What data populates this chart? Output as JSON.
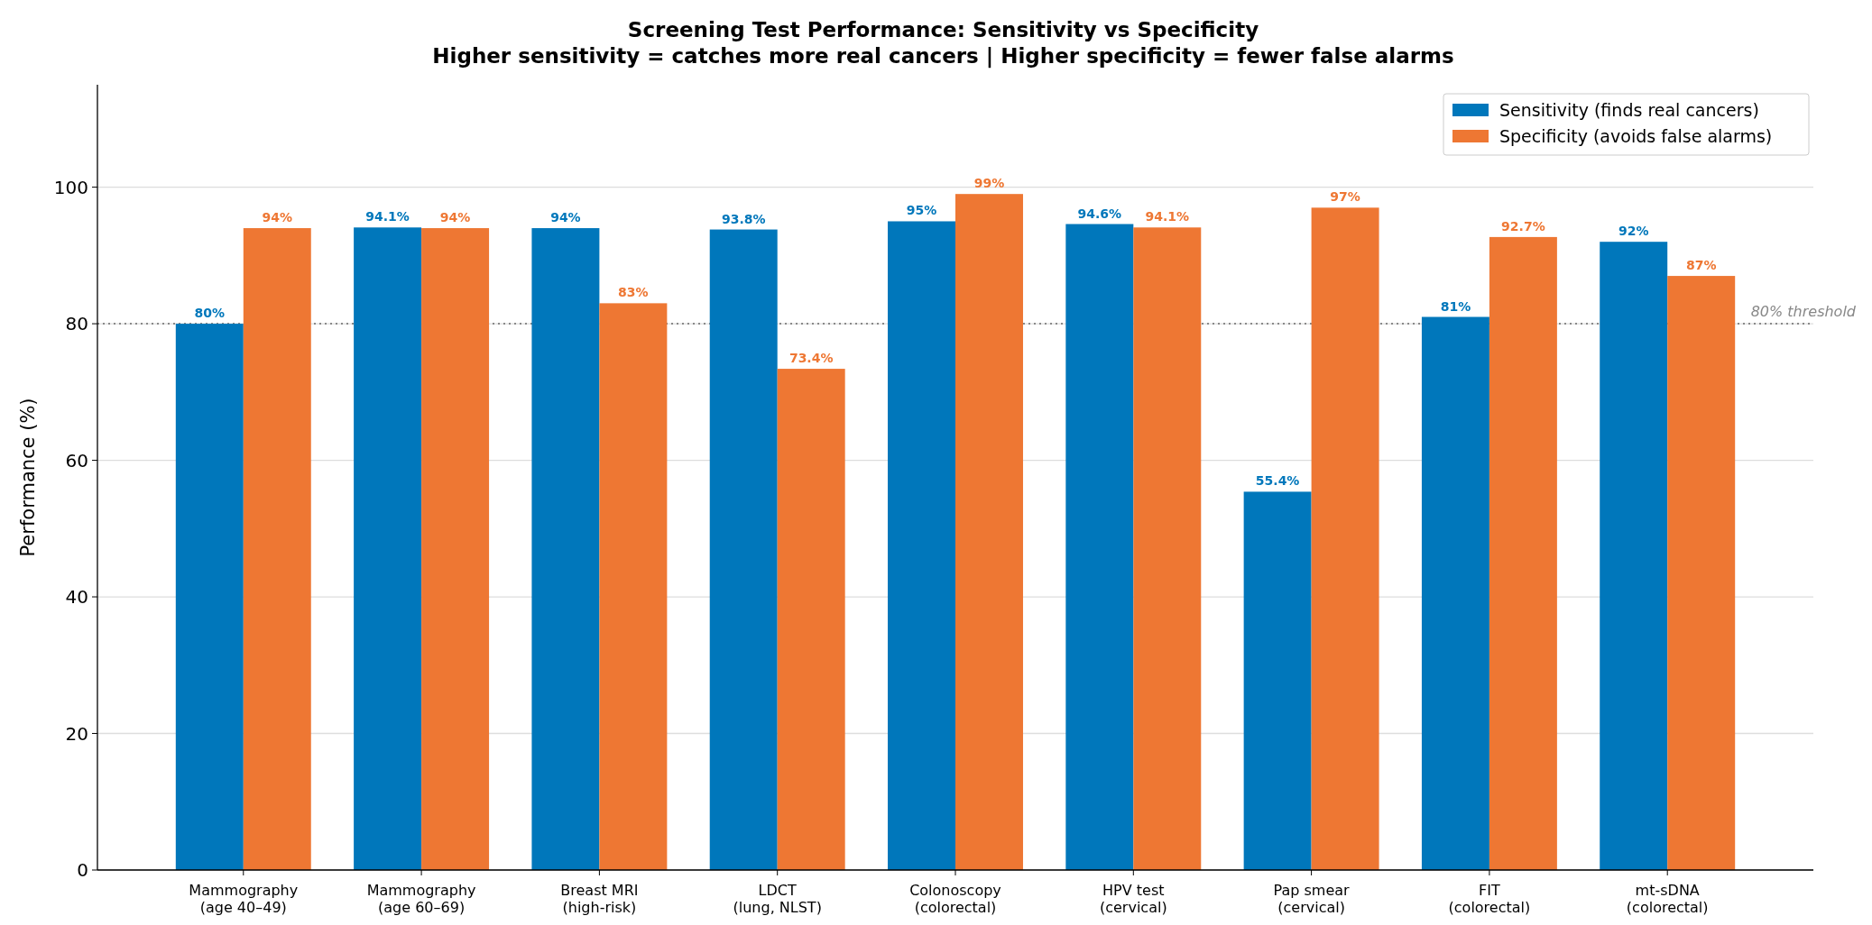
{
  "chart_data": {
    "type": "bar",
    "title": "Screening Test Performance: Sensitivity vs Specificity",
    "subtitle": "Higher sensitivity = catches more real cancers | Higher specificity = fewer false alarms",
    "ylabel": "Performance (%)",
    "categories": [
      "Mammography\n(age 40–49)",
      "Mammography\n(age 60–69)",
      "Breast MRI\n(high-risk)",
      "LDCT\n(lung, NLST)",
      "Colonoscopy\n(colorectal)",
      "HPV test\n(cervical)",
      "Pap smear\n(cervical)",
      "FIT\n(colorectal)",
      "mt-sDNA\n(colorectal)"
    ],
    "series": [
      {
        "name": "Sensitivity (finds real cancers)",
        "color": "#0077bb",
        "values": [
          80,
          94.1,
          94,
          93.8,
          95,
          94.6,
          55.4,
          81,
          92
        ],
        "value_labels": [
          "80%",
          "94.1%",
          "94%",
          "93.8%",
          "95%",
          "94.6%",
          "55.4%",
          "81%",
          "92%"
        ]
      },
      {
        "name": "Specificity (avoids false alarms)",
        "color": "#ee7733",
        "values": [
          94,
          94,
          83,
          73.4,
          99,
          94.1,
          97,
          92.7,
          87
        ],
        "value_labels": [
          "94%",
          "94%",
          "83%",
          "73.4%",
          "99%",
          "94.1%",
          "97%",
          "92.7%",
          "87%"
        ]
      }
    ],
    "ylim": [
      0,
      115
    ],
    "yticks": [
      0,
      20,
      40,
      60,
      80,
      100
    ],
    "grid": "y",
    "legend": "top right",
    "ref_lines": [
      {
        "axis": "y",
        "value": 80,
        "label": "80% threshold",
        "color": "#888888",
        "line_style": "dotted"
      }
    ]
  }
}
